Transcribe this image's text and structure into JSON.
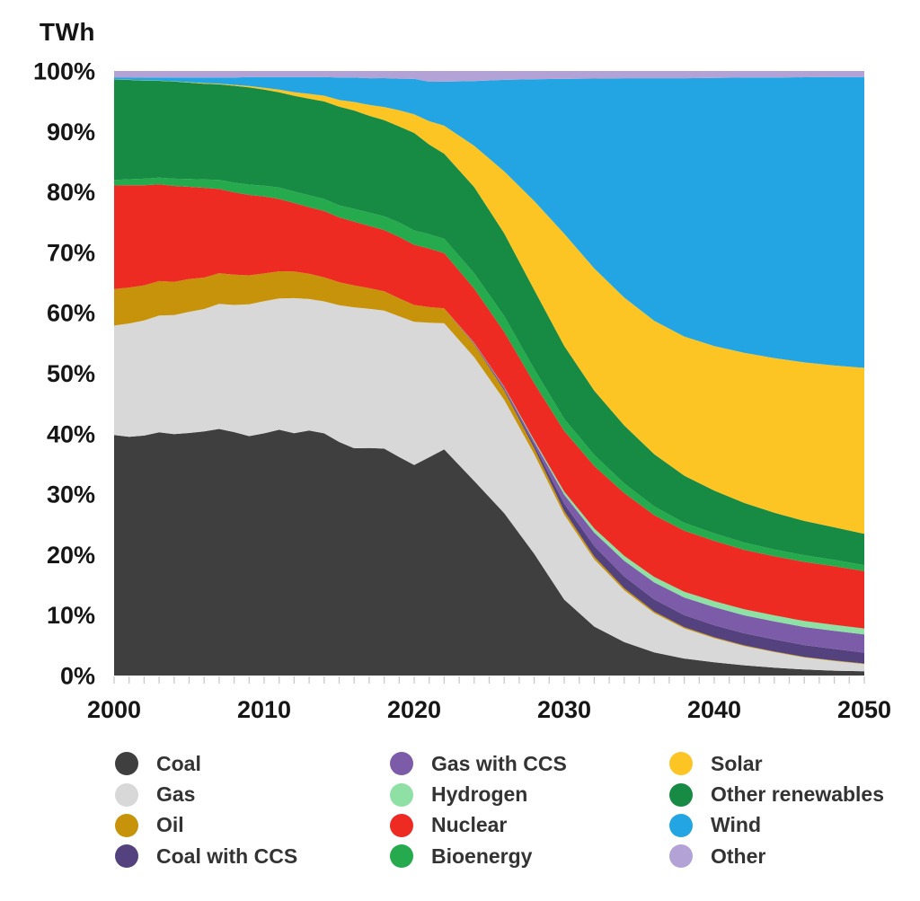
{
  "axis_title": "TWh",
  "y_axis": {
    "ticks": [
      {
        "label": "0%",
        "value": 0
      },
      {
        "label": "10%",
        "value": 10
      },
      {
        "label": "20%",
        "value": 20
      },
      {
        "label": "30%",
        "value": 30
      },
      {
        "label": "40%",
        "value": 40
      },
      {
        "label": "50%",
        "value": 50
      },
      {
        "label": "60%",
        "value": 60
      },
      {
        "label": "70%",
        "value": 70
      },
      {
        "label": "80%",
        "value": 80
      },
      {
        "label": "90%",
        "value": 90
      },
      {
        "label": "100%",
        "value": 100
      }
    ]
  },
  "x_axis": {
    "ticks": [
      {
        "label": "2000",
        "value": 2000
      },
      {
        "label": "2010",
        "value": 2010
      },
      {
        "label": "2020",
        "value": 2020
      },
      {
        "label": "2030",
        "value": 2030
      },
      {
        "label": "2040",
        "value": 2040
      },
      {
        "label": "2050",
        "value": 2050
      }
    ],
    "minor_tick_every_years": 1
  },
  "legend": {
    "columns": [
      [
        {
          "label": "Coal",
          "color": "#3F3F3F"
        },
        {
          "label": "Gas",
          "color": "#D8D8D8"
        },
        {
          "label": "Oil",
          "color": "#C6930B"
        },
        {
          "label": "Coal with CCS",
          "color": "#53427E"
        }
      ],
      [
        {
          "label": "Gas with CCS",
          "color": "#7C5CA8"
        },
        {
          "label": "Hydrogen",
          "color": "#8EE0A4"
        },
        {
          "label": "Nuclear",
          "color": "#EE2B23"
        },
        {
          "label": "Bioenergy",
          "color": "#25AB4D"
        }
      ],
      [
        {
          "label": "Solar",
          "color": "#FDC524"
        },
        {
          "label": "Other renewables",
          "color": "#178A43"
        },
        {
          "label": "Wind",
          "color": "#22A5E2"
        },
        {
          "label": "Other",
          "color": "#B2A2D5"
        }
      ]
    ]
  },
  "chart_data": {
    "type": "area",
    "stacked": "percent",
    "title": "",
    "ylabel": "TWh",
    "xlabel": "",
    "x_range": [
      2000,
      2050
    ],
    "y_range_percent": [
      0,
      100
    ],
    "grid": false,
    "legend_position": "bottom",
    "stack_order_bottom_to_top": [
      "Coal",
      "Gas",
      "Oil",
      "Coal with CCS",
      "Gas with CCS",
      "Hydrogen",
      "Nuclear",
      "Bioenergy",
      "Other renewables",
      "Solar",
      "Wind",
      "Other"
    ],
    "years": [
      2000,
      2001,
      2002,
      2003,
      2004,
      2005,
      2006,
      2007,
      2008,
      2009,
      2010,
      2011,
      2012,
      2013,
      2014,
      2015,
      2016,
      2017,
      2018,
      2019,
      2020,
      2021,
      2022,
      2024,
      2026,
      2028,
      2030,
      2032,
      2034,
      2036,
      2038,
      2040,
      2042,
      2044,
      2046,
      2048,
      2050
    ],
    "series": [
      {
        "name": "Coal",
        "color": "#3F3F3F",
        "values": [
          39.5,
          39.2,
          39.6,
          40.2,
          39.8,
          40.0,
          40.3,
          41.0,
          40.2,
          39.6,
          40.3,
          40.8,
          40.0,
          40.6,
          40.2,
          38.6,
          37.4,
          37.6,
          37.8,
          36.6,
          35.0,
          36.5,
          38.0,
          33.0,
          27.5,
          20.5,
          12.5,
          8.0,
          5.5,
          3.8,
          2.8,
          2.2,
          1.7,
          1.3,
          1.0,
          0.8,
          0.7
        ]
      },
      {
        "name": "Gas",
        "color": "#D8D8D8",
        "values": [
          18.0,
          18.6,
          19.0,
          19.3,
          19.6,
          20.0,
          20.2,
          20.8,
          21.0,
          21.8,
          22.0,
          21.8,
          22.3,
          21.8,
          21.9,
          22.6,
          23.2,
          23.0,
          23.0,
          23.6,
          23.8,
          22.5,
          21.2,
          21.0,
          19.2,
          16.8,
          14.0,
          11.0,
          8.5,
          6.5,
          5.0,
          4.0,
          3.2,
          2.6,
          2.0,
          1.6,
          1.2
        ]
      },
      {
        "name": "Oil",
        "color": "#C6930B",
        "values": [
          6.0,
          5.9,
          5.8,
          5.7,
          5.5,
          5.4,
          5.2,
          5.1,
          5.0,
          4.8,
          4.6,
          4.5,
          4.4,
          4.2,
          4.0,
          3.8,
          3.6,
          3.4,
          3.2,
          3.0,
          2.8,
          2.6,
          2.5,
          2.2,
          1.6,
          1.0,
          0.6,
          0.45,
          0.35,
          0.25,
          0.2,
          0.15,
          0.12,
          0.1,
          0.1,
          0.1,
          0.1
        ]
      },
      {
        "name": "Coal with CCS",
        "color": "#53427E",
        "values": [
          0,
          0,
          0,
          0,
          0,
          0,
          0,
          0,
          0,
          0,
          0,
          0,
          0,
          0,
          0,
          0,
          0,
          0,
          0,
          0,
          0,
          0,
          0,
          0.1,
          0.2,
          0.5,
          1.2,
          1.7,
          1.9,
          2.0,
          2.0,
          2.0,
          2.0,
          2.0,
          1.95,
          1.9,
          1.8
        ]
      },
      {
        "name": "Gas with CCS",
        "color": "#7C5CA8",
        "values": [
          0,
          0,
          0,
          0,
          0,
          0,
          0,
          0,
          0,
          0,
          0,
          0,
          0,
          0,
          0,
          0,
          0,
          0,
          0,
          0,
          0,
          0,
          0,
          0.1,
          0.3,
          0.6,
          1.5,
          2.2,
          2.6,
          2.8,
          2.9,
          3.0,
          3.0,
          3.0,
          3.0,
          3.0,
          3.0
        ]
      },
      {
        "name": "Hydrogen",
        "color": "#8EE0A4",
        "values": [
          0,
          0,
          0,
          0,
          0,
          0,
          0,
          0,
          0,
          0,
          0,
          0,
          0,
          0,
          0,
          0,
          0,
          0,
          0,
          0,
          0,
          0,
          0,
          0.05,
          0.1,
          0.25,
          0.5,
          0.7,
          0.8,
          0.9,
          0.95,
          1.0,
          1.0,
          1.0,
          1.0,
          1.0,
          1.0
        ]
      },
      {
        "name": "Nuclear",
        "color": "#EE2B23",
        "values": [
          17.0,
          16.8,
          16.5,
          16.0,
          15.8,
          15.2,
          14.8,
          14.0,
          13.6,
          13.3,
          12.8,
          12.0,
          11.3,
          11.0,
          11.0,
          10.7,
          10.5,
          10.3,
          10.2,
          10.3,
          10.0,
          9.8,
          9.3,
          9.2,
          9.3,
          9.6,
          10.0,
          10.2,
          10.3,
          10.2,
          10.1,
          10.0,
          9.9,
          9.8,
          9.8,
          9.7,
          9.5
        ]
      },
      {
        "name": "Bioenergy",
        "color": "#25AB4D",
        "values": [
          0.9,
          1.0,
          1.1,
          1.1,
          1.2,
          1.3,
          1.4,
          1.5,
          1.6,
          1.7,
          1.8,
          1.9,
          1.9,
          2.0,
          2.0,
          2.0,
          2.1,
          2.2,
          2.3,
          2.4,
          2.4,
          2.4,
          2.4,
          2.6,
          2.7,
          2.4,
          2.0,
          1.8,
          1.6,
          1.45,
          1.3,
          1.25,
          1.2,
          1.15,
          1.1,
          1.05,
          1.0
        ]
      },
      {
        "name": "Other renewables",
        "color": "#178A43",
        "values": [
          16.5,
          16.3,
          16.2,
          16.0,
          16.0,
          15.9,
          15.8,
          15.9,
          16.0,
          16.1,
          16.0,
          15.8,
          15.8,
          16.0,
          16.2,
          16.3,
          16.2,
          16.0,
          16.0,
          16.1,
          16.2,
          15.0,
          14.3,
          14.6,
          14.0,
          13.3,
          12.0,
          10.5,
          9.5,
          8.6,
          7.8,
          7.1,
          6.6,
          6.1,
          5.7,
          5.4,
          5.2
        ]
      },
      {
        "name": "Solar",
        "color": "#FDC524",
        "values": [
          0.02,
          0.02,
          0.03,
          0.04,
          0.05,
          0.07,
          0.1,
          0.12,
          0.15,
          0.2,
          0.3,
          0.45,
          0.6,
          0.8,
          0.95,
          1.1,
          1.4,
          1.8,
          2.2,
          2.7,
          3.1,
          3.9,
          4.7,
          7.0,
          10.5,
          15.0,
          18.5,
          20.0,
          21.0,
          22.0,
          23.0,
          24.0,
          25.0,
          25.7,
          26.3,
          26.8,
          27.5
        ]
      },
      {
        "name": "Wind",
        "color": "#22A5E2",
        "values": [
          0.3,
          0.35,
          0.45,
          0.5,
          0.6,
          0.75,
          0.9,
          1.0,
          1.2,
          1.5,
          1.8,
          2.1,
          2.5,
          2.8,
          3.1,
          3.7,
          4.0,
          4.4,
          4.8,
          5.3,
          5.9,
          6.6,
          7.4,
          11.0,
          15.5,
          20.5,
          25.5,
          31.0,
          36.0,
          40.0,
          42.7,
          44.5,
          45.8,
          46.6,
          47.3,
          47.8,
          48.2
        ]
      },
      {
        "name": "Other",
        "color": "#B2A2D5",
        "values": [
          1.1,
          1.1,
          1.1,
          1.1,
          1.1,
          1.1,
          1.1,
          1.1,
          1.1,
          1.0,
          1.0,
          1.0,
          1.0,
          1.0,
          1.0,
          1.1,
          1.1,
          1.2,
          1.2,
          1.3,
          1.3,
          1.8,
          1.8,
          1.7,
          1.5,
          1.4,
          1.3,
          1.25,
          1.2,
          1.2,
          1.2,
          1.15,
          1.1,
          1.1,
          1.05,
          1.0,
          1.0
        ]
      }
    ]
  }
}
